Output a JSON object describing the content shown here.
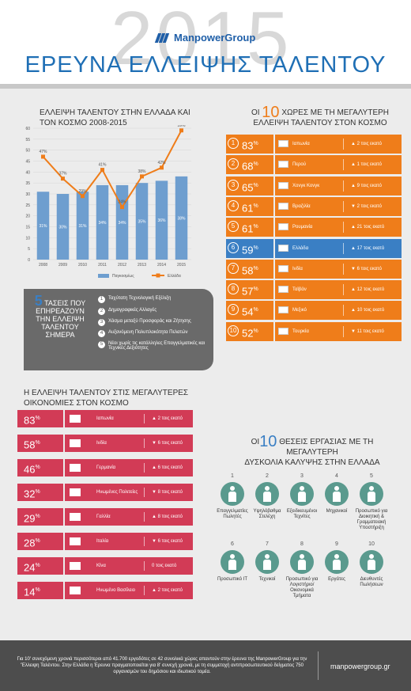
{
  "header": {
    "year": "2015",
    "brand": "ManpowerGroup",
    "title": "ΕΡΕΥΝΑ ΕΛΛΕΙΨΗΣ ΤΑΛΕΝΤΟΥ"
  },
  "chart_section": {
    "title_line1": "ΕΛΛΕΙΨΗ ΤΑΛΕΝΤΟΥ ΣΤΗΝ ΕΛΛΑΔΑ ΚΑΙ",
    "title_line2": "ΤΟΝ ΚΟΣΜΟ 2008-2015"
  },
  "chart_data": {
    "type": "bar",
    "categories": [
      "2008",
      "2009",
      "2010",
      "2011",
      "2012",
      "2013",
      "2014",
      "2015"
    ],
    "ylim": [
      0,
      60
    ],
    "yticks": [
      0,
      5,
      10,
      15,
      20,
      25,
      30,
      35,
      40,
      45,
      50,
      55,
      60
    ],
    "series": [
      {
        "name": "Παγκοσμίως",
        "kind": "bar",
        "values": [
          31,
          30,
          31,
          34,
          34,
          35,
          36,
          38
        ],
        "labels": [
          "31%",
          "30%",
          "31%",
          "34%",
          "34%",
          "35%",
          "36%",
          "38%"
        ]
      },
      {
        "name": "Ελλάδα",
        "kind": "line",
        "values": [
          47,
          37,
          29,
          41,
          24,
          38,
          42,
          59
        ],
        "labels": [
          "47%",
          "37%",
          "29%",
          "41%",
          "24%",
          "38%",
          "42%",
          "59%"
        ]
      }
    ],
    "colors": {
      "bar": "#6e9ecf",
      "line": "#ef7d1a"
    },
    "legend": "bottom",
    "grid": true
  },
  "top10": {
    "prefix": "ΟΙ",
    "num": "10",
    "title_line1": "ΧΩΡΕΣ ΜΕ ΤΗ ΜΕΓΑΛΥΤΕΡΗ",
    "title_line2": "ΕΛΛΕΙΨΗ ΤΑΛΕΝΤΟΥ ΣΤΟΝ ΚΟΣΜΟ",
    "rows": [
      {
        "rank": "1",
        "pct": "83",
        "country": "Ιαπωνία",
        "change": "▲ 2 τοις εκατό"
      },
      {
        "rank": "2",
        "pct": "68",
        "country": "Περού",
        "change": "▲ 1 τοις εκατό"
      },
      {
        "rank": "3",
        "pct": "65",
        "country": "Χονγκ Κονγκ",
        "change": "▲ 9 τοις εκατό"
      },
      {
        "rank": "4",
        "pct": "61",
        "country": "Βραζιλία",
        "change": "▼ 2 τοις εκατό"
      },
      {
        "rank": "5",
        "pct": "61",
        "country": "Ρουμανία",
        "change": "▲ 21 τοις εκατό"
      },
      {
        "rank": "6",
        "pct": "59",
        "country": "Ελλάδα",
        "change": "▲ 17 τοις εκατό"
      },
      {
        "rank": "7",
        "pct": "58",
        "country": "Ινδία",
        "change": "▼ 6 τοις εκατό"
      },
      {
        "rank": "8",
        "pct": "57",
        "country": "Ταϊβάν",
        "change": "▲ 12 τοις εκατό"
      },
      {
        "rank": "9",
        "pct": "54",
        "country": "Μεξικό",
        "change": "▲ 10 τοις εκατό"
      },
      {
        "rank": "10",
        "pct": "52",
        "country": "Τουρκία",
        "change": "▼ 11 τοις εκατό"
      }
    ],
    "pct_sign": "%"
  },
  "trends": {
    "num": "5",
    "title": "ΤΑΣΕΙΣ ΠΟΥ ΕΠΗΡΕΑΖΟΥΝ ΤΗΝ ΕΛΛΕΙΨΗ ΤΑΛΕΝΤΟΥ ΣΗΜΕΡΑ",
    "items": [
      {
        "n": "1",
        "text": "Ταχύτατη Τεχνολογική Εξέλιξη"
      },
      {
        "n": "2",
        "text": "Δημογραφικές Αλλαγές"
      },
      {
        "n": "3",
        "text": "Χάσμα μεταξύ Προσφοράς και Ζήτησης"
      },
      {
        "n": "4",
        "text": "Αυξανόμενη Πολυπλοκότητα Πελατών"
      },
      {
        "n": "5",
        "text": "Νέοι χωρίς τις κατάλληλες Επαγγελματικές και Τεχνικές Δεξιότητες"
      }
    ]
  },
  "economies": {
    "title_line1": "Η ΕΛΛΕΙΨΗ ΤΑΛΕΝΤΟΥ ΣΤΙΣ ΜΕΓΑΛΥΤΕΡΕΣ",
    "title_line2": "ΟΙΚΟΝΟΜΙΕΣ ΣΤΟΝ ΚΟΣΜΟ",
    "rows": [
      {
        "pct": "83",
        "country": "Ιαπωνία",
        "change": "▲ 2 τοις εκατό"
      },
      {
        "pct": "58",
        "country": "Ινδία",
        "change": "▼ 6 τοις εκατό"
      },
      {
        "pct": "46",
        "country": "Γερμανία",
        "change": "▲ 6 τοις εκατό"
      },
      {
        "pct": "32",
        "country": "Ηνωμένες Πολιτείες",
        "change": "▼ 8 τοις εκατό"
      },
      {
        "pct": "29",
        "country": "Γαλλία",
        "change": "▲ 8 τοις εκατό"
      },
      {
        "pct": "28",
        "country": "Ιταλία",
        "change": "▼ 6 τοις εκατό"
      },
      {
        "pct": "24",
        "country": "Κίνα",
        "change": "0 τοις εκατό"
      },
      {
        "pct": "14",
        "country": "Ηνωμένο Βασίλειο",
        "change": "▲ 2 τοις εκατό"
      }
    ]
  },
  "jobs": {
    "prefix": "ΟΙ",
    "num": "10",
    "title_line1": "ΘΕΣΕΙΣ ΕΡΓΑΣΙΑΣ ΜΕ ΤΗ ΜΕΓΑΛΥΤΕΡΗ",
    "title_line2": "ΔΥΣΚΟΛΙΑ ΚΑΛΥΨΗΣ ΣΤΗΝ ΕΛΛΑΔΑ",
    "items": [
      {
        "n": "1",
        "label": "Επαγγελματίες Πωλητές"
      },
      {
        "n": "2",
        "label": "Υψηλόβαθμα Στελέχη"
      },
      {
        "n": "3",
        "label": "Εξειδικευμένοι Τεχνίτες"
      },
      {
        "n": "4",
        "label": "Μηχανικοί"
      },
      {
        "n": "5",
        "label": "Προσωπικό για Διοικητική & Γραμματειακή Υποστήριξη"
      },
      {
        "n": "6",
        "label": "Προσωπικό IT"
      },
      {
        "n": "7",
        "label": "Τεχνικοί"
      },
      {
        "n": "8",
        "label": "Προσωπικό για Λογιστήριο/ Οικονομικά Τμήματα"
      },
      {
        "n": "9",
        "label": "Εργάτες"
      },
      {
        "n": "10",
        "label": "Διευθυντές Πωλήσεων"
      }
    ]
  },
  "footer": {
    "text": "Για 10' συνεχόμενη χρονιά περισσότεροι από 41.700 εργοδότες σε 42 συνολικά χώρες απαντούν στην έρευνα της ManpowerGroup για την 'Έλλειψη Ταλέντου. Στην Ελλάδα η Έρευνα πραγματοποιείται για 8' συνεχή χρονιά, με τη συμμετοχή αντιπροσωπευτικού δείγματος 750 οργανισμών του δημόσιου και ιδιωτικού τομέα.",
    "url": "manpowergroup.gr"
  }
}
